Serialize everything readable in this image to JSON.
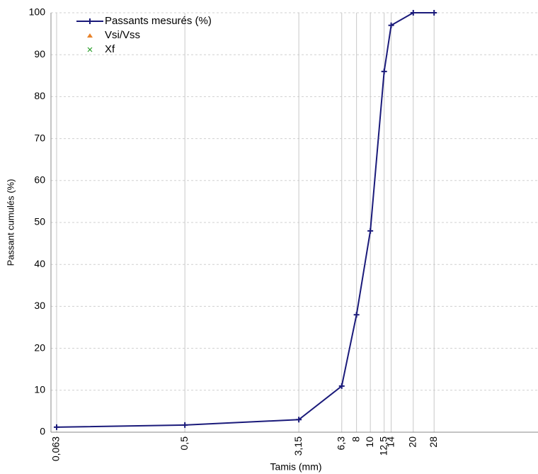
{
  "chart_data": {
    "type": "line",
    "x_label": "Tamis (mm)",
    "y_label": "Passant cumulés (%)",
    "x": [
      0.063,
      0.5,
      3.15,
      6.3,
      8,
      10,
      12.5,
      14,
      20,
      28
    ],
    "series": [
      {
        "name": "Passants mesurés (%)",
        "color": "#1a1a7a",
        "marker": "plus",
        "values": [
          1.2,
          1.7,
          3,
          11,
          28,
          48,
          86,
          97,
          100,
          100
        ]
      },
      {
        "name": "Vsi/Vss",
        "color": "#e8822a",
        "marker": "triangle",
        "values": [
          null,
          null,
          null,
          null,
          null,
          null,
          null,
          null,
          null,
          null
        ]
      },
      {
        "name": "Xf",
        "color": "#2ca02c",
        "marker": "x",
        "values": [
          null,
          null,
          null,
          null,
          null,
          null,
          null,
          null,
          null,
          null
        ]
      }
    ],
    "xscale": "log",
    "xlim": [
      0.0575,
      150
    ],
    "xticks": [
      {
        "value": 0.063,
        "label": "0,063"
      },
      {
        "value": 0.5,
        "label": "0,5"
      },
      {
        "value": 3.15,
        "label": "3,15"
      },
      {
        "value": 6.3,
        "label": "6,3"
      },
      8,
      10,
      {
        "value": 12.5,
        "label": "12,5"
      },
      14,
      20,
      28
    ],
    "ylim": [
      0,
      100
    ],
    "yticks": [
      0,
      10,
      20,
      30,
      40,
      50,
      60,
      70,
      80,
      90,
      100
    ],
    "grid": true,
    "legend": "upper-left"
  }
}
